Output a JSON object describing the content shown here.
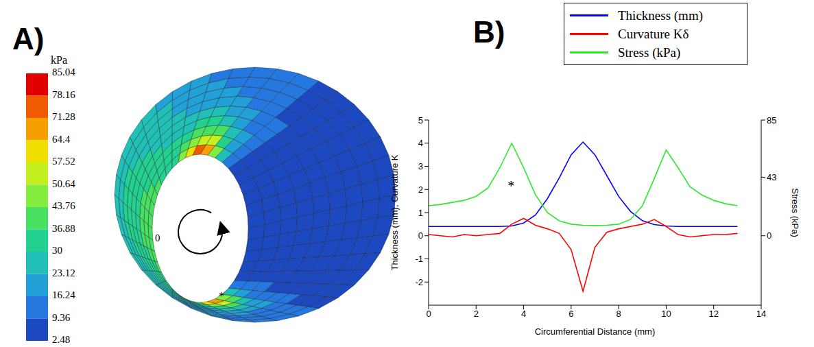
{
  "chart_data": [
    {
      "type": "mesh",
      "label": "A)",
      "colorbar": {
        "title": "kPa",
        "range": [
          2.48,
          85.04
        ],
        "ticks": [
          85.04,
          78.16,
          71.28,
          64.4,
          57.52,
          50.64,
          43.76,
          36.88,
          30,
          23.12,
          16.24,
          9.36,
          2.48
        ],
        "colors": [
          "#e00000",
          "#f05a00",
          "#f5a000",
          "#f0e000",
          "#c4f020",
          "#84ee40",
          "#48e060",
          "#22d090",
          "#20c0b8",
          "#22a0d8",
          "#2478e0",
          "#1c48c0"
        ]
      },
      "annotations": [
        "0",
        "*"
      ]
    },
    {
      "type": "line",
      "label": "B)",
      "xlabel": "Circumferential Distance (mm)",
      "ylabel": "Thickness (mm), Curvature K",
      "y2label": "Stress (kPa)",
      "x": [
        0,
        0.5,
        1,
        1.5,
        2,
        2.5,
        3,
        3.5,
        4,
        4.5,
        5,
        5.5,
        6,
        6.5,
        7,
        7.5,
        8,
        8.5,
        9,
        9.5,
        10,
        10.5,
        11,
        11.5,
        12,
        12.5,
        13
      ],
      "series": [
        {
          "name": "Thickness (mm)",
          "color": "#0000ff",
          "values": [
            0.4,
            0.4,
            0.4,
            0.4,
            0.4,
            0.4,
            0.4,
            0.42,
            0.55,
            0.9,
            1.6,
            2.5,
            3.5,
            4.05,
            3.5,
            2.6,
            1.7,
            1.05,
            0.65,
            0.48,
            0.42,
            0.4,
            0.4,
            0.4,
            0.4,
            0.4,
            0.4
          ]
        },
        {
          "name": "Curvature Kδ",
          "color": "#ff0000",
          "values": [
            0.05,
            0,
            -0.05,
            0.05,
            0,
            0.05,
            0.1,
            0.5,
            0.75,
            0.45,
            0.3,
            0.1,
            -0.6,
            -2.4,
            -0.5,
            0.15,
            0.3,
            0.4,
            0.5,
            0.7,
            0.4,
            0.05,
            -0.05,
            0,
            0.05,
            0.05,
            0.1
          ]
        },
        {
          "name": "Stress (kPa)",
          "color": "#2ee82e",
          "axis": "y2",
          "values": [
            22,
            23,
            24.5,
            26,
            29,
            35,
            50,
            68,
            50,
            30,
            17,
            11,
            8.5,
            7.7,
            7.5,
            7.7,
            8.5,
            12,
            22,
            42,
            63,
            50,
            36,
            30,
            26,
            23.5,
            22
          ]
        }
      ],
      "xlim": [
        0,
        14
      ],
      "xticks": [
        0,
        2,
        4,
        6,
        8,
        10,
        12,
        14
      ],
      "ylim": [
        -3,
        5
      ],
      "yticks": [
        -2,
        -1,
        0,
        1,
        2,
        3,
        4,
        5
      ],
      "y2lim": [
        -51,
        85
      ],
      "y2ticks": [
        0,
        43,
        85
      ],
      "grid": false,
      "legend": "top right",
      "annotations": [
        "*"
      ]
    }
  ]
}
